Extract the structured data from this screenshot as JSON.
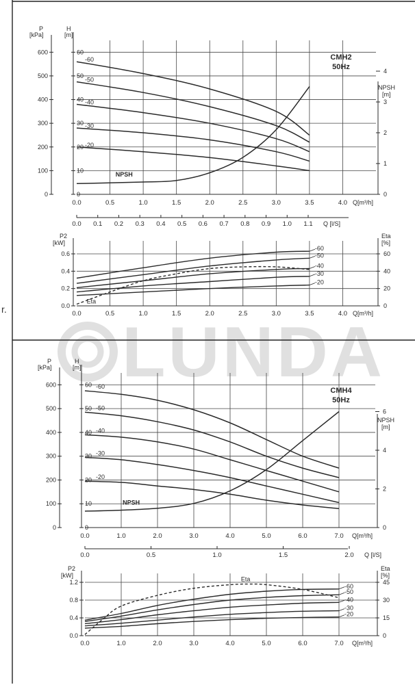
{
  "side_marker": "r.",
  "watermark": "LUNDA",
  "colors": {
    "ink": "#2a2a2a",
    "grid": "#3a3a3a",
    "watermark": "#d9d9d9"
  },
  "chart_data": [
    {
      "type": "line",
      "title": "CMH2",
      "subtitle": "50Hz",
      "left_axis_1": {
        "label": "P",
        "unit": "[kPa]",
        "ticks": [
          "0",
          "100",
          "200",
          "300",
          "400",
          "500",
          "600"
        ]
      },
      "left_axis_2": {
        "label": "H",
        "unit": "[m]",
        "ticks": [
          "0",
          "10",
          "20",
          "30",
          "40",
          "50",
          "60"
        ],
        "ylim": [
          0,
          65
        ]
      },
      "right_axis": {
        "label": "NPSH",
        "unit": "[m]",
        "ticks": [
          "0",
          "1",
          "2",
          "3",
          "4"
        ],
        "ylim": [
          0,
          5
        ]
      },
      "x_axis": {
        "label": "Q[m³/h]",
        "ticks": [
          "0.0",
          "0.5",
          "1.0",
          "1.5",
          "2.0",
          "2.5",
          "3.0",
          "3.5",
          "4.0"
        ],
        "xlim": [
          0,
          4.5
        ]
      },
      "x2_axis": {
        "label": "Q [l/S]",
        "ticks": [
          "0.0",
          "0.1",
          "0.2",
          "0.3",
          "0.4",
          "0.5",
          "0.6",
          "0.7",
          "0.8",
          "0.9",
          "1.0",
          "1.1"
        ]
      },
      "series": [
        {
          "name": "-60",
          "x": [
            0,
            1,
            2,
            3,
            3.5
          ],
          "y": [
            56,
            51,
            44.5,
            35,
            25
          ]
        },
        {
          "name": "-50",
          "x": [
            0,
            1,
            2,
            3,
            3.5
          ],
          "y": [
            47.5,
            43,
            37,
            29,
            22
          ]
        },
        {
          "name": "-40",
          "x": [
            0,
            1,
            2,
            3,
            3.5
          ],
          "y": [
            38,
            34.5,
            30,
            23.5,
            18
          ]
        },
        {
          "name": "-30",
          "x": [
            0,
            1,
            2,
            3,
            3.5
          ],
          "y": [
            28,
            26,
            23,
            18,
            14
          ]
        },
        {
          "name": "-20",
          "x": [
            0,
            1,
            2,
            3,
            3.5
          ],
          "y": [
            20,
            18,
            15.5,
            12,
            10
          ]
        },
        {
          "name": "NPSH",
          "axis": "right",
          "x": [
            0,
            1,
            1.5,
            2,
            2.5,
            3,
            3.5
          ],
          "y": [
            0.35,
            0.4,
            0.45,
            0.7,
            1.2,
            2.1,
            3.5
          ]
        }
      ],
      "lower": {
        "left_axis": {
          "label": "P2",
          "unit": "[kW]",
          "ticks": [
            "0.0",
            "0.2",
            "0.4",
            "0.6"
          ],
          "ylim": [
            0,
            0.75
          ]
        },
        "right_axis": {
          "label": "Eta",
          "unit": "[%]",
          "ticks": [
            "0",
            "20",
            "40",
            "60"
          ],
          "ylim": [
            0,
            75
          ]
        },
        "x_axis": {
          "label": "Q[m³/h]",
          "ticks": [
            "0.0",
            "0.5",
            "1.0",
            "1.5",
            "2.0",
            "2.5",
            "3.0",
            "3.5",
            "4.0"
          ],
          "xlim": [
            0,
            4.5
          ]
        },
        "series": [
          {
            "name": "-60",
            "x": [
              0,
              1,
              2,
              3,
              3.5
            ],
            "y": [
              0.32,
              0.44,
              0.55,
              0.62,
              0.63
            ]
          },
          {
            "name": "-50",
            "x": [
              0,
              1,
              2,
              3,
              3.5
            ],
            "y": [
              0.26,
              0.36,
              0.46,
              0.53,
              0.55
            ]
          },
          {
            "name": "-40",
            "x": [
              0,
              1,
              2,
              3,
              3.5
            ],
            "y": [
              0.21,
              0.29,
              0.37,
              0.42,
              0.43
            ]
          },
          {
            "name": "-30",
            "x": [
              0,
              1,
              2,
              3,
              3.5
            ],
            "y": [
              0.16,
              0.23,
              0.28,
              0.33,
              0.34
            ]
          },
          {
            "name": "-20",
            "x": [
              0,
              1,
              2,
              3,
              3.5
            ],
            "y": [
              0.12,
              0.16,
              0.2,
              0.23,
              0.24
            ]
          },
          {
            "name": "Eta",
            "dashed": true,
            "axis": "right",
            "x": [
              0,
              0.5,
              1,
              1.5,
              2,
              2.5,
              3,
              3.5
            ],
            "y": [
              2,
              16,
              29,
              37,
              43,
              45,
              45,
              42
            ]
          }
        ]
      }
    },
    {
      "type": "line",
      "title": "CMH4",
      "subtitle": "50Hz",
      "left_axis_1": {
        "label": "P",
        "unit": "[kPa]",
        "ticks": [
          "0",
          "100",
          "200",
          "300",
          "400",
          "500",
          "600"
        ]
      },
      "left_axis_2": {
        "label": "H",
        "unit": "[m]",
        "ticks": [
          "0",
          "10",
          "20",
          "30",
          "40",
          "50",
          "60"
        ],
        "ylim": [
          0,
          65
        ]
      },
      "right_axis": {
        "label": "NPSH",
        "unit": "[m]",
        "ticks": [
          "0",
          "2",
          "4",
          "6"
        ],
        "ylim": [
          0,
          8
        ]
      },
      "x_axis": {
        "label": "Q[m³/h]",
        "ticks": [
          "0.0",
          "1.0",
          "2.0",
          "3.0",
          "4.0",
          "5.0",
          "6.0",
          "7.0"
        ],
        "xlim": [
          0,
          8
        ]
      },
      "x2_axis": {
        "label": "Q [l/S]",
        "ticks": [
          "0.0",
          "0.5",
          "1.0",
          "1.5",
          "2.0"
        ]
      },
      "series": [
        {
          "name": "-60",
          "x": [
            0,
            1,
            2,
            3,
            4,
            5,
            6,
            7
          ],
          "y": [
            57.5,
            56,
            53.5,
            49.5,
            44,
            37,
            30,
            25
          ]
        },
        {
          "name": "-50",
          "x": [
            0,
            1,
            2,
            3,
            4,
            5,
            6,
            7
          ],
          "y": [
            48.5,
            47,
            44.5,
            41,
            36,
            30,
            25,
            21
          ]
        },
        {
          "name": "-40",
          "x": [
            0,
            1,
            2,
            3,
            4,
            5,
            6,
            7
          ],
          "y": [
            39,
            38,
            36,
            33,
            28.5,
            24,
            19.5,
            15
          ]
        },
        {
          "name": "-30",
          "x": [
            0,
            1,
            2,
            3,
            4,
            5,
            6,
            7
          ],
          "y": [
            29.5,
            28.5,
            26.5,
            24,
            21,
            17.5,
            14,
            10.5
          ]
        },
        {
          "name": "-20",
          "x": [
            0,
            1,
            2,
            3,
            4,
            5,
            6,
            7
          ],
          "y": [
            19.5,
            19,
            17.5,
            16,
            14,
            11.5,
            9.5,
            8
          ]
        },
        {
          "name": "NPSH",
          "axis": "right",
          "x": [
            0,
            1,
            2,
            3,
            4,
            5,
            6,
            7
          ],
          "y": [
            0.85,
            0.9,
            1,
            1.25,
            1.9,
            3,
            4.5,
            6
          ]
        }
      ],
      "lower": {
        "left_axis": {
          "label": "P2",
          "unit": "[kW]",
          "ticks": [
            "0.0",
            "0.4",
            "0.8",
            "1.2"
          ],
          "ylim": [
            0,
            1.4
          ]
        },
        "right_axis": {
          "label": "Eta",
          "unit": "[%]",
          "ticks": [
            "0",
            "15",
            "30",
            "45"
          ],
          "ylim": [
            0,
            52.5
          ]
        },
        "x_axis": {
          "label": "Q[m³/h]",
          "ticks": [
            "0.0",
            "1.0",
            "2.0",
            "3.0",
            "4.0",
            "5.0",
            "6.0",
            "7.0"
          ],
          "xlim": [
            0,
            8
          ]
        },
        "series": [
          {
            "name": "-60",
            "x": [
              0,
              1,
              2,
              3,
              4,
              5,
              6,
              7
            ],
            "y": [
              0.35,
              0.5,
              0.68,
              0.82,
              0.93,
              1.0,
              1.04,
              1.05
            ]
          },
          {
            "name": "-50",
            "x": [
              0,
              1,
              2,
              3,
              4,
              5,
              6,
              7
            ],
            "y": [
              0.32,
              0.44,
              0.58,
              0.7,
              0.8,
              0.86,
              0.9,
              0.92
            ]
          },
          {
            "name": "-40",
            "x": [
              0,
              1,
              2,
              3,
              4,
              5,
              6,
              7
            ],
            "y": [
              0.27,
              0.36,
              0.47,
              0.56,
              0.64,
              0.69,
              0.73,
              0.75
            ]
          },
          {
            "name": "-30",
            "x": [
              0,
              1,
              2,
              3,
              4,
              5,
              6,
              7
            ],
            "y": [
              0.22,
              0.28,
              0.35,
              0.42,
              0.48,
              0.52,
              0.55,
              0.56
            ]
          },
          {
            "name": "-20",
            "x": [
              0,
              1,
              2,
              3,
              4,
              5,
              6,
              7
            ],
            "y": [
              0.17,
              0.21,
              0.27,
              0.32,
              0.36,
              0.39,
              0.41,
              0.42
            ]
          },
          {
            "name": "Eta",
            "dashed": true,
            "axis": "right",
            "x": [
              0,
              0.5,
              1,
              2,
              3,
              4,
              4.5,
              5,
              6,
              7
            ],
            "y": [
              1,
              14,
              25,
              34,
              40,
              43,
              43.5,
              43,
              39,
              32
            ]
          }
        ]
      }
    }
  ]
}
